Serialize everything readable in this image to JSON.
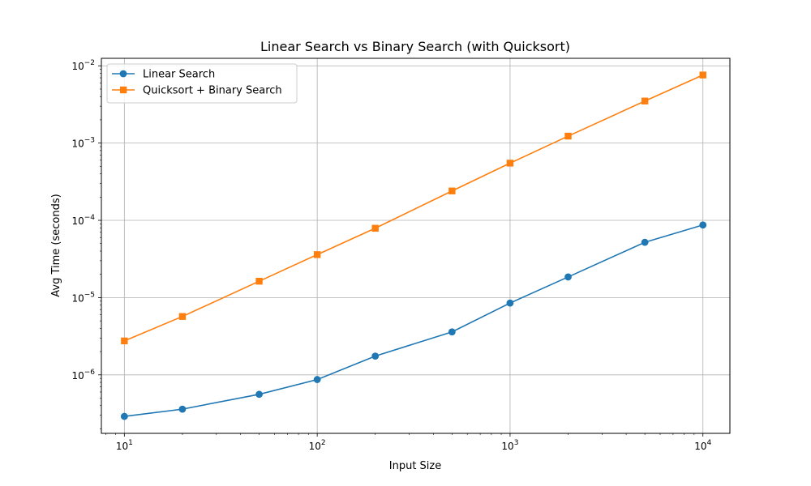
{
  "chart_data": {
    "type": "line",
    "title": "Linear Search vs Binary Search (with Quicksort)",
    "xlabel": "Input Size",
    "ylabel": "Avg Time (seconds)",
    "xscale": "log",
    "yscale": "log",
    "xlim": [
      7.6,
      13800
    ],
    "ylim": [
      1.75e-07,
      0.0125
    ],
    "grid": true,
    "legend_position": "top-left",
    "x": [
      10,
      20,
      50,
      100,
      200,
      500,
      1000,
      2000,
      5000,
      10000
    ],
    "x_ticks": [
      {
        "value": 10,
        "base": "10",
        "exp": "1"
      },
      {
        "value": 100,
        "base": "10",
        "exp": "2"
      },
      {
        "value": 1000,
        "base": "10",
        "exp": "3"
      },
      {
        "value": 10000,
        "base": "10",
        "exp": "4"
      }
    ],
    "y_ticks": [
      {
        "value": 1e-06,
        "base": "10",
        "exp": "−6"
      },
      {
        "value": 1e-05,
        "base": "10",
        "exp": "−5"
      },
      {
        "value": 0.0001,
        "base": "10",
        "exp": "−4"
      },
      {
        "value": 0.001,
        "base": "10",
        "exp": "−3"
      },
      {
        "value": 0.01,
        "base": "10",
        "exp": "−2"
      }
    ],
    "series": [
      {
        "name": "Linear Search",
        "color": "#1f77b4",
        "marker": "circle",
        "values": [
          2.9e-07,
          3.6e-07,
          5.6e-07,
          8.7e-07,
          1.75e-06,
          3.6e-06,
          8.5e-06,
          1.85e-05,
          5.2e-05,
          8.7e-05
        ]
      },
      {
        "name": "Quicksort + Binary Search",
        "color": "#ff7f0e",
        "marker": "square",
        "values": [
          2.75e-06,
          5.7e-06,
          1.63e-05,
          3.6e-05,
          7.9e-05,
          0.00024,
          0.00055,
          0.00123,
          0.0035,
          0.0076
        ]
      }
    ]
  }
}
